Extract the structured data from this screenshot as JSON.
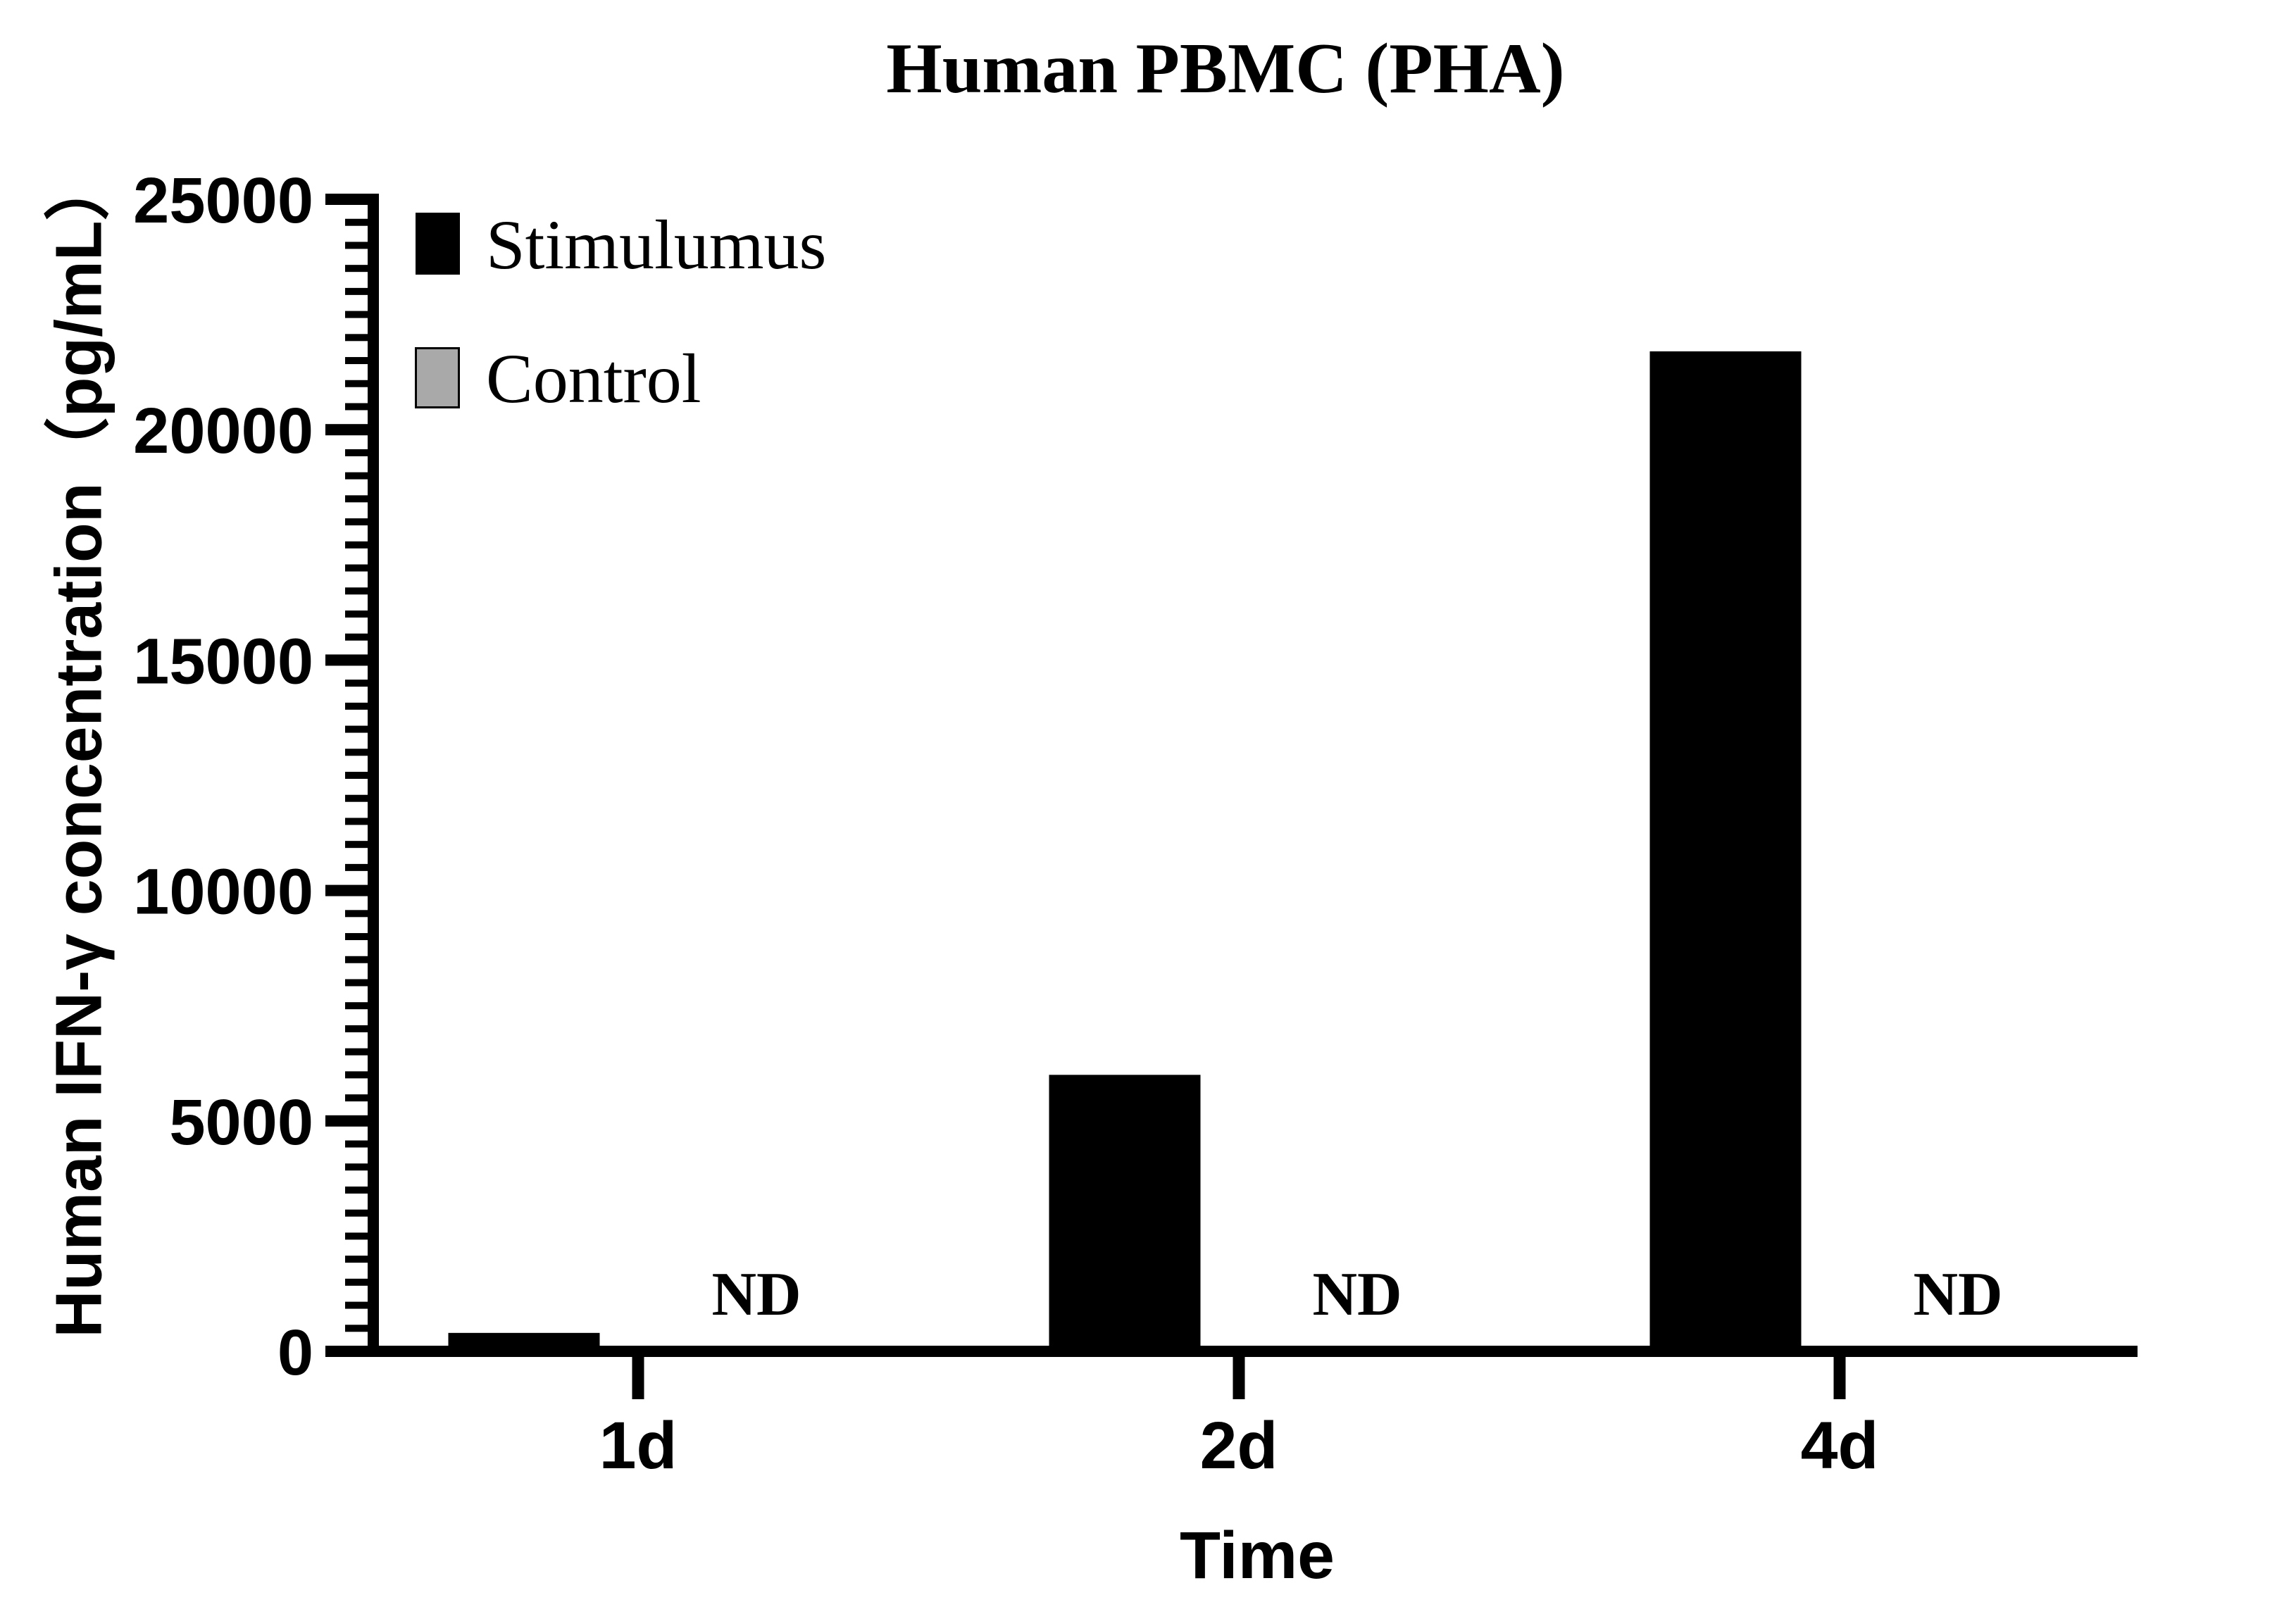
{
  "title": "Human PBMC (PHA)",
  "legend": {
    "items": [
      {
        "label": "Stimulumus",
        "color": "#000000",
        "border": "#000000"
      },
      {
        "label": "Control",
        "color": "#a9a9a9",
        "border": "#000000"
      }
    ]
  },
  "chart_data": {
    "type": "bar",
    "title": "Human PBMC (PHA)",
    "xlabel": "Time",
    "ylabel": "Human IFN-γ concentration（pg/mL）",
    "categories": [
      "1d",
      "2d",
      "4d"
    ],
    "series": [
      {
        "name": "Stimulumus",
        "color": "#000000",
        "values": [
          400,
          6000,
          21700
        ]
      },
      {
        "name": "Control",
        "color": "#a9a9a9",
        "values": [
          null,
          null,
          null
        ],
        "annotations": [
          "ND",
          "ND",
          "ND"
        ]
      }
    ],
    "nd_label": "ND",
    "ylim": [
      0,
      25000
    ],
    "yticks": [
      0,
      5000,
      10000,
      15000,
      20000,
      25000
    ],
    "ytick_labels": [
      "0",
      "5000",
      "10000",
      "15000",
      "20000",
      "25000"
    ],
    "minor_tick_step": 500,
    "grid": false,
    "legend_position": "top-left-inside",
    "axis_color": "#000000",
    "background_color": "#ffffff"
  }
}
